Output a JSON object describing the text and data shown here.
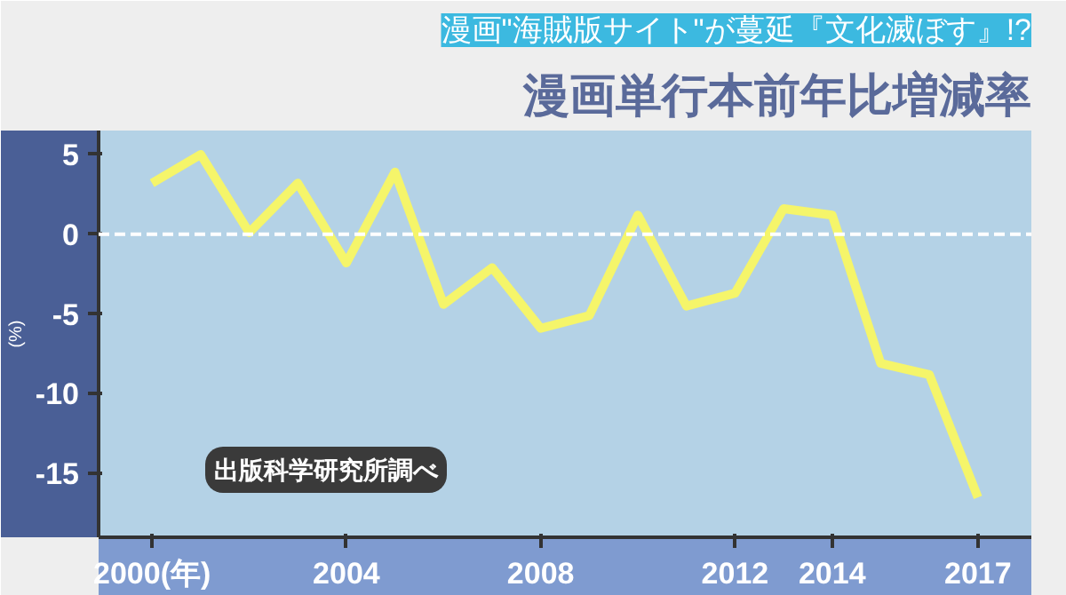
{
  "chart_data": {
    "type": "line",
    "title": "漫画単行本前年比増減率",
    "subtitle": "漫画\"海賊版サイト\"が蔓延『文化滅ぼす』!?",
    "ylabel": "(%)",
    "x": [
      2000,
      2001,
      2002,
      2003,
      2004,
      2005,
      2006,
      2007,
      2008,
      2009,
      2010,
      2011,
      2012,
      2013,
      2014,
      2015,
      2016,
      2017
    ],
    "series": [
      {
        "color": "#f5f56a",
        "values": [
          3.2,
          5.0,
          0.1,
          3.2,
          -1.8,
          3.9,
          -4.4,
          -2.1,
          -5.9,
          -5.1,
          1.2,
          -4.5,
          -3.7,
          1.6,
          1.2,
          -8.1,
          -8.8,
          -16.5
        ]
      }
    ],
    "xlim": [
      1998.9,
      2018.1
    ],
    "xticks": [
      {
        "value": 2000,
        "label": "2000(年)"
      },
      2004,
      2008,
      2012,
      2014,
      2017
    ],
    "ylim": [
      -19,
      6.5
    ],
    "yticks": [
      5,
      0,
      -5,
      -10,
      -15
    ],
    "ref_lines": [
      {
        "axis": "y",
        "value": 0,
        "color": "#ffffff",
        "line_style": "dashed"
      }
    ],
    "annotations": [
      "出版科学研究所調べ"
    ],
    "grid": false,
    "marker": "none",
    "line_style": "solid"
  }
}
